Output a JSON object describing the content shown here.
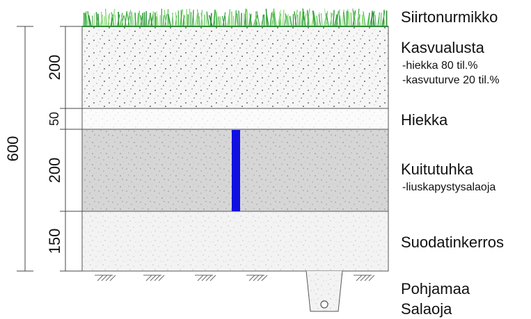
{
  "layers": [
    {
      "id": "turf",
      "name": "Siirtonurmikko",
      "notes": []
    },
    {
      "id": "growing",
      "name": "Kasvualusta",
      "thickness": "200",
      "notes": [
        "-hiekka 80 til.%",
        "-kasvuturve 20 til.%"
      ]
    },
    {
      "id": "sand",
      "name": "Hiekka",
      "thickness": "50",
      "notes": []
    },
    {
      "id": "ash",
      "name": "Kuitutuhka",
      "thickness": "200",
      "notes": [
        "-liuskapystysalaoja"
      ]
    },
    {
      "id": "filter",
      "name": "Suodatinkerros",
      "thickness": "150",
      "notes": []
    },
    {
      "id": "subgrade",
      "name": "Pohjamaa",
      "notes": []
    },
    {
      "id": "drain",
      "name": "Salaoja",
      "notes": []
    }
  ],
  "total_thickness": "600",
  "colors": {
    "grass": "#3cb043",
    "growing_fill": "#f6f6f6",
    "sand_fill": "#fbfbfb",
    "ash_fill": "#d6d6d6",
    "filter_fill": "#f3f3f3",
    "strip_drain": "#1010e0",
    "line": "#555555"
  }
}
